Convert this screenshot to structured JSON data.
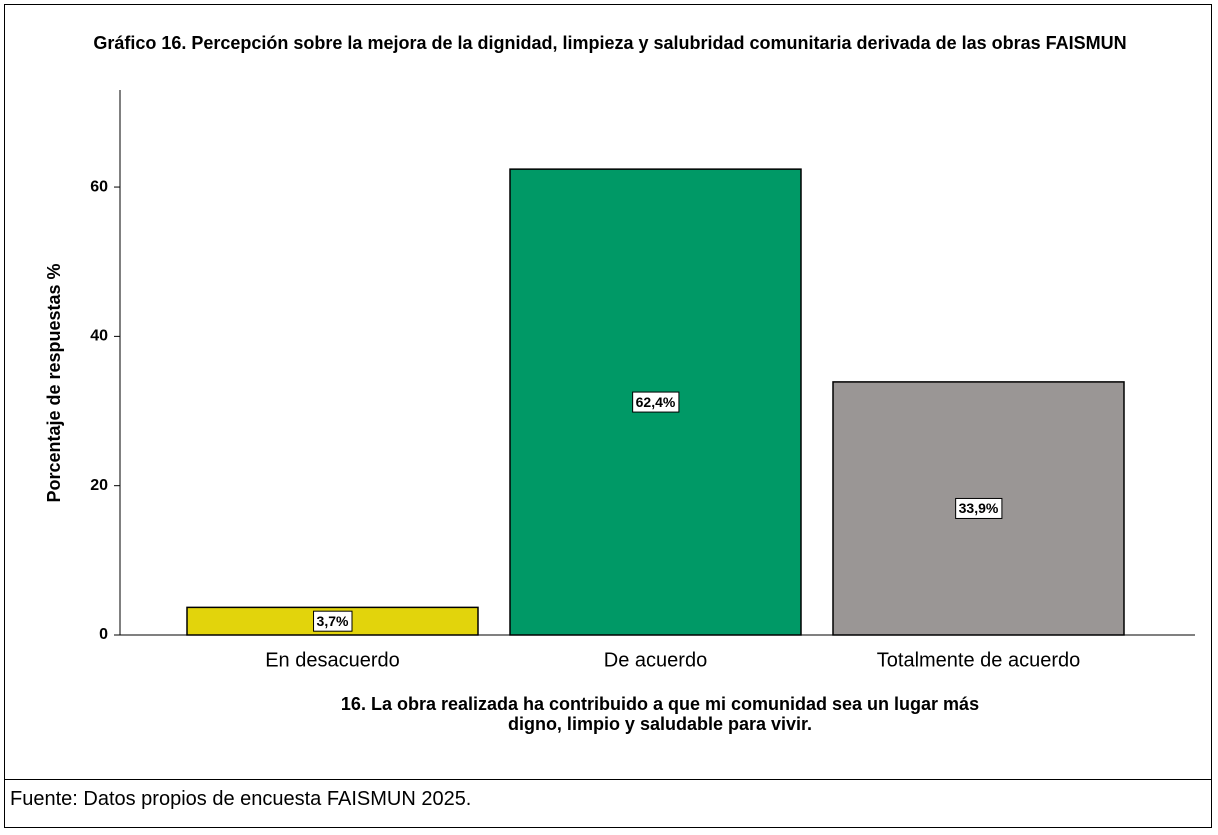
{
  "chart_data": {
    "type": "bar",
    "title": "Gráfico 16. Percepción sobre la mejora de la dignidad, limpieza y salubridad comunitaria derivada de las obras FAISMUN",
    "xlabel": "16. La obra realizada ha contribuido a que mi comunidad sea un lugar más digno, limpio y saludable para vivir.",
    "ylabel": "Porcentaje de respuestas %",
    "categories": [
      "En desacuerdo",
      "De acuerdo",
      "Totalmente de acuerdo"
    ],
    "values": [
      3.7,
      62.4,
      33.9
    ],
    "value_labels": [
      "3,7%",
      "62,4%",
      "33,9%"
    ],
    "colors": [
      "#e2d40c",
      "#009966",
      "#9a9695"
    ],
    "ylim": [
      0,
      73
    ],
    "yticks": [
      0,
      20,
      40,
      60
    ],
    "grid": false
  },
  "footer": {
    "source": "Fuente: Datos propios de encuesta FAISMUN 2025."
  }
}
